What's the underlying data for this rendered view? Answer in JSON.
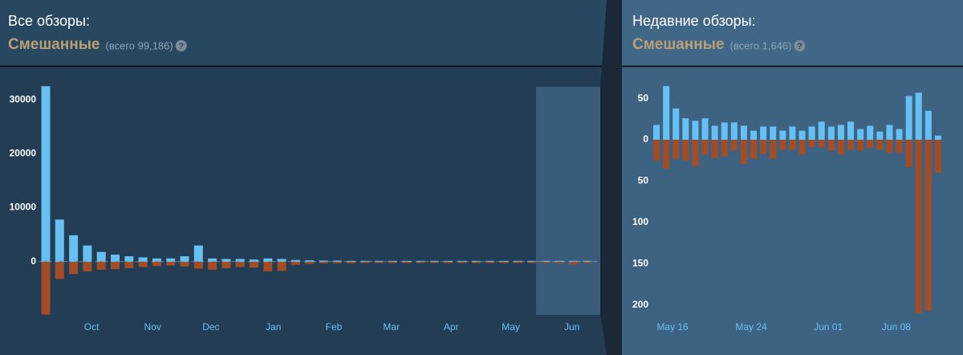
{
  "chart_data": [
    {
      "type": "bar",
      "title": "Все обзоры:",
      "rating": "Смешанные",
      "total": "(всего 99,186)",
      "help_icon": "?",
      "categories": [
        null,
        null,
        null,
        null,
        null,
        null,
        null,
        null,
        null,
        null,
        null,
        null,
        null,
        null,
        null,
        null,
        null,
        null,
        null,
        null,
        null,
        null,
        null,
        null,
        null,
        null,
        null,
        null,
        null,
        null,
        null,
        null,
        null,
        null,
        null,
        null,
        null,
        null,
        null,
        null
      ],
      "series": [
        {
          "name": "positive",
          "color": "#66c0f4",
          "values": [
            32500,
            7800,
            4900,
            3000,
            1800,
            1300,
            1000,
            800,
            600,
            600,
            1000,
            3000,
            600,
            500,
            500,
            400,
            600,
            500,
            300,
            250,
            200,
            200,
            150,
            150,
            150,
            150,
            150,
            150,
            150,
            150,
            150,
            150,
            150,
            150,
            150,
            150,
            150,
            150,
            150,
            150
          ]
        },
        {
          "name": "negative",
          "color": "#a34c25",
          "values": [
            -9800,
            -3200,
            -2300,
            -1800,
            -1500,
            -1400,
            -1200,
            -1000,
            -800,
            -700,
            -900,
            -1300,
            -1500,
            -1200,
            -1000,
            -1100,
            -1800,
            -1700,
            -600,
            -400,
            -300,
            -300,
            -300,
            -250,
            -250,
            -250,
            -250,
            -250,
            -250,
            -250,
            -250,
            -250,
            -250,
            -250,
            -250,
            -250,
            -250,
            -250,
            -500,
            -250
          ]
        }
      ],
      "ylim": [
        -10000,
        32400
      ],
      "yticks": [
        30000,
        20000,
        10000,
        0
      ],
      "xticks": [
        {
          "value": 3.3,
          "label": "Oct"
        },
        {
          "value": 7.7,
          "label": "Nov"
        },
        {
          "value": 11.9,
          "label": "Dec"
        },
        {
          "value": 16.4,
          "label": "Jan"
        },
        {
          "value": 20.75,
          "label": "Feb"
        },
        {
          "value": 24.9,
          "label": "Mar"
        },
        {
          "value": 29.2,
          "label": "Apr"
        },
        {
          "value": 33.5,
          "label": "May"
        },
        {
          "value": 37.9,
          "label": "Jun"
        }
      ]
    },
    {
      "type": "bar",
      "title": "Недавние обзоры:",
      "rating": "Смешанные",
      "total": "(всего 1,646)",
      "help_icon": "?",
      "categories": [
        null,
        null,
        null,
        null,
        null,
        null,
        null,
        null,
        null,
        null,
        null,
        null,
        null,
        null,
        null,
        null,
        null,
        null,
        null,
        null,
        null,
        null,
        null,
        null,
        null,
        null,
        null,
        null,
        null,
        null
      ],
      "series": [
        {
          "name": "positive",
          "color": "#66c0f4",
          "values": [
            18,
            65,
            38,
            26,
            23,
            26,
            17,
            21,
            21,
            17,
            11,
            16,
            16,
            11,
            16,
            11,
            16,
            22,
            16,
            18,
            22,
            13,
            17,
            10,
            18,
            13,
            53,
            57,
            35,
            5
          ]
        },
        {
          "name": "negative",
          "color": "#a34c25",
          "values": [
            -25,
            -35,
            -23,
            -25,
            -32,
            -18,
            -22,
            -20,
            -13,
            -29,
            -23,
            -17,
            -23,
            -12,
            -12,
            -18,
            -9,
            -9,
            -13,
            -18,
            -12,
            -13,
            -10,
            -12,
            -16,
            -16,
            -33,
            -210,
            -207,
            -40
          ]
        }
      ],
      "ylim": [
        -212,
        72
      ],
      "yticks": [
        50,
        0,
        {
          "value": -50,
          "label": "50"
        },
        {
          "value": -100,
          "label": "100"
        },
        {
          "value": -150,
          "label": "150"
        },
        {
          "value": -200,
          "label": "200"
        }
      ],
      "xticks": [
        {
          "value": 1.65,
          "label": "May 16"
        },
        {
          "value": 9.75,
          "label": "May 24"
        },
        {
          "value": 17.7,
          "label": "Jun 01"
        },
        {
          "value": 24.7,
          "label": "Jun 08"
        }
      ]
    }
  ]
}
